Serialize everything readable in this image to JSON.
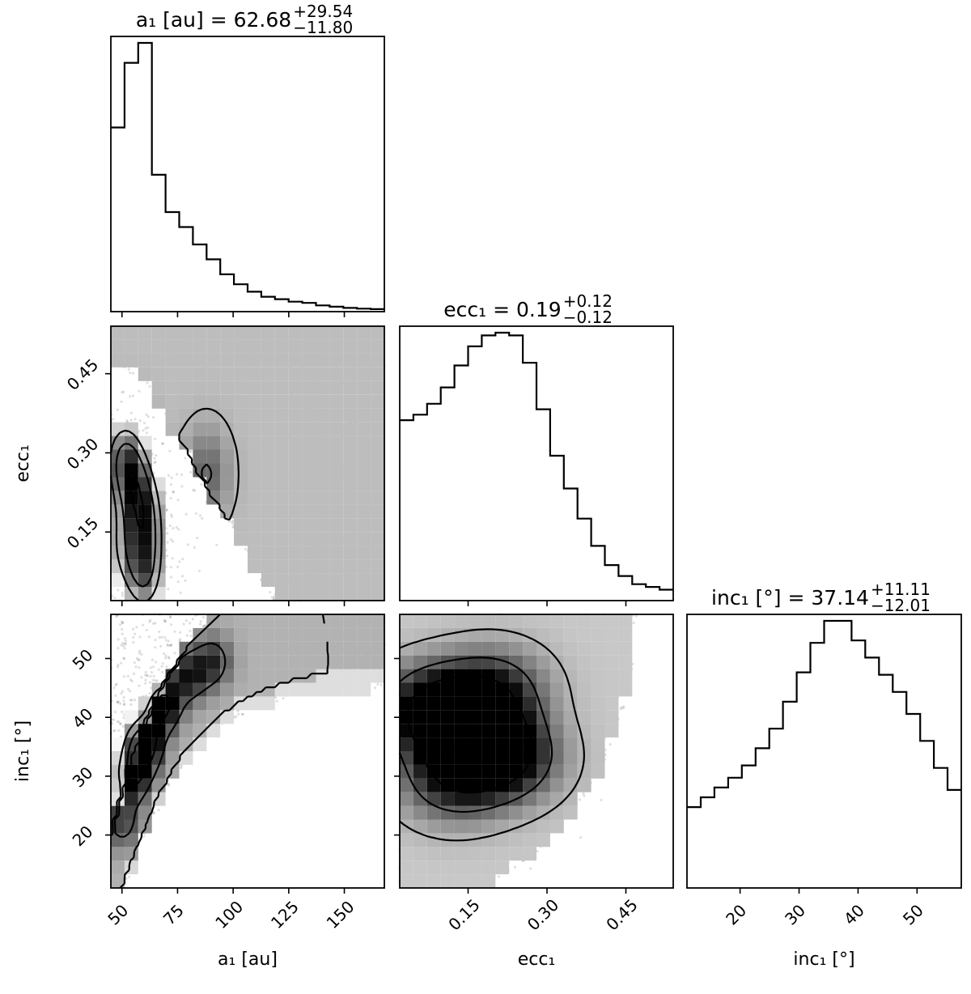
{
  "chart_data": {
    "type": "corner",
    "parameters": [
      {
        "key": "a",
        "label": "a₁ [au]",
        "ylabel": "",
        "range": [
          45,
          168
        ],
        "ticks": [
          50,
          75,
          100,
          125,
          150
        ],
        "title": {
          "prefix": "a₁ [au] = 62.68",
          "sup": "+29.54",
          "sub": "−11.80"
        }
      },
      {
        "key": "ecc",
        "label": "ecc₁",
        "ylabel": "ecc₁",
        "range": [
          0.02,
          0.54
        ],
        "ticks": [
          0.15,
          0.3,
          0.45
        ],
        "title": {
          "prefix": "ecc₁ = 0.19",
          "sup": "+0.12",
          "sub": "−0.12"
        }
      },
      {
        "key": "inc",
        "label": "inc₁ [°]",
        "ylabel": "inc₁ [°]",
        "range": [
          11,
          57.5
        ],
        "ticks": [
          20,
          30,
          40,
          50
        ],
        "title": {
          "prefix": "inc₁ [°] = 37.14",
          "sup": "+11.11",
          "sub": "−12.01"
        }
      }
    ],
    "histograms": [
      {
        "param": "a",
        "bins": [
          45,
          51.15,
          57.3,
          63.45,
          69.6,
          75.75,
          81.9,
          88.05,
          94.2,
          100.35,
          106.5,
          112.65,
          118.8,
          124.95,
          131.1,
          137.25,
          143.4,
          149.55,
          155.7,
          161.85,
          168
        ],
        "counts": [
          0.74,
          1.0,
          1.08,
          0.55,
          0.4,
          0.34,
          0.27,
          0.21,
          0.15,
          0.11,
          0.08,
          0.06,
          0.05,
          0.04,
          0.035,
          0.025,
          0.02,
          0.015,
          0.012,
          0.01
        ]
      },
      {
        "param": "ecc",
        "bins": [
          0.02,
          0.046,
          0.072,
          0.098,
          0.124,
          0.15,
          0.176,
          0.202,
          0.228,
          0.254,
          0.28,
          0.306,
          0.332,
          0.358,
          0.384,
          0.41,
          0.436,
          0.462,
          0.488,
          0.514,
          0.54
        ],
        "counts": [
          0.66,
          0.68,
          0.72,
          0.78,
          0.86,
          0.93,
          0.97,
          0.98,
          0.97,
          0.87,
          0.7,
          0.53,
          0.41,
          0.3,
          0.2,
          0.13,
          0.09,
          0.06,
          0.05,
          0.04
        ]
      },
      {
        "param": "inc",
        "bins": [
          11,
          13.325,
          15.65,
          17.975,
          20.3,
          22.625,
          24.95,
          27.275,
          29.6,
          31.925,
          34.25,
          36.575,
          38.9,
          41.225,
          43.55,
          45.875,
          48.2,
          50.525,
          52.85,
          55.175,
          57.5
        ],
        "counts": [
          0.33,
          0.37,
          0.41,
          0.45,
          0.5,
          0.57,
          0.65,
          0.76,
          0.88,
          1.0,
          1.09,
          1.09,
          1.01,
          0.94,
          0.87,
          0.8,
          0.71,
          0.6,
          0.49,
          0.4
        ]
      }
    ],
    "density": {
      "a_vs_ecc": {
        "peaks": [
          {
            "x": 51,
            "y": 0.29,
            "weight": 1.0
          },
          {
            "x": 58,
            "y": 0.22,
            "weight": 0.8
          },
          {
            "x": 62,
            "y": 0.15,
            "weight": 0.6
          },
          {
            "x": 60,
            "y": 0.06,
            "weight": 0.85
          },
          {
            "x": 49,
            "y": 0.12,
            "weight": 0.5
          },
          {
            "x": 88,
            "y": 0.26,
            "weight": 0.35
          }
        ],
        "mean_ecc": 0.19
      },
      "a_vs_inc": {
        "peaks": [
          {
            "x": 59,
            "y": 35.5,
            "weight": 1.0
          },
          {
            "x": 54,
            "y": 30,
            "weight": 0.7
          },
          {
            "x": 68,
            "y": 42,
            "weight": 0.75
          },
          {
            "x": 80,
            "y": 47,
            "weight": 0.5
          },
          {
            "x": 91,
            "y": 49.5,
            "weight": 0.45
          },
          {
            "x": 50,
            "y": 22,
            "weight": 0.4
          }
        ]
      },
      "ecc_vs_inc": {
        "peaks": [
          {
            "x": 0.15,
            "y": 37.5,
            "weight": 1.0
          },
          {
            "x": 0.08,
            "y": 42,
            "weight": 0.65
          },
          {
            "x": 0.22,
            "y": 33,
            "weight": 0.7
          },
          {
            "x": 0.2,
            "y": 45,
            "weight": 0.5
          },
          {
            "x": 0.12,
            "y": 29,
            "weight": 0.5
          }
        ]
      }
    },
    "contour_levels": [
      "39%",
      "86%",
      "99%"
    ],
    "colors": {
      "hist": "#000000",
      "points": "#000000",
      "background": "#ffffff"
    },
    "grid": false
  }
}
